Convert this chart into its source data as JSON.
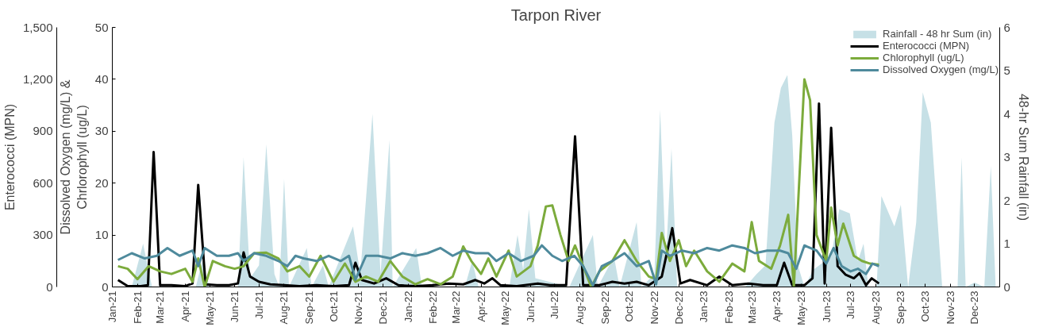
{
  "chart_data": {
    "type": "line",
    "title": "Tarpon River",
    "ylabel": "Dissolved Oxygen (mg/L) &\nChrlorophyll (ug/L)",
    "y2label": "48-hr Sum Rainfall (in)",
    "y3label": "Enterococci (MPN)",
    "xlim": [
      "2021-01-01",
      "2024-01-01"
    ],
    "xticks": [
      {
        "value": "2021-01",
        "label": "Jan-21"
      },
      {
        "value": "2021-02",
        "label": "Feb-21"
      },
      {
        "value": "2021-03",
        "label": "Mar-21"
      },
      {
        "value": "2021-04",
        "label": "Apr-21"
      },
      {
        "value": "2021-05",
        "label": "May-21"
      },
      {
        "value": "2021-06",
        "label": "Jun-21"
      },
      {
        "value": "2021-07",
        "label": "Jul-21"
      },
      {
        "value": "2021-08",
        "label": "Aug-21"
      },
      {
        "value": "2021-09",
        "label": "Sep-21"
      },
      {
        "value": "2021-10",
        "label": "Oct-21"
      },
      {
        "value": "2021-11",
        "label": "Nov-21"
      },
      {
        "value": "2021-12",
        "label": "Dec-21"
      },
      {
        "value": "2022-01",
        "label": "Jan-22"
      },
      {
        "value": "2022-02",
        "label": "Feb-22"
      },
      {
        "value": "2022-03",
        "label": "Mar-22"
      },
      {
        "value": "2022-04",
        "label": "Apr-22"
      },
      {
        "value": "2022-05",
        "label": "May-22"
      },
      {
        "value": "2022-06",
        "label": "Jun-22"
      },
      {
        "value": "2022-07",
        "label": "Jul-22"
      },
      {
        "value": "2022-08",
        "label": "Aug-22"
      },
      {
        "value": "2022-09",
        "label": "Sep-22"
      },
      {
        "value": "2022-10",
        "label": "Oct-22"
      },
      {
        "value": "2022-11",
        "label": "Nov-22"
      },
      {
        "value": "2022-12",
        "label": "Dec-22"
      },
      {
        "value": "2023-01",
        "label": "Jan-23"
      },
      {
        "value": "2023-02",
        "label": "Feb-23"
      },
      {
        "value": "2023-03",
        "label": "Mar-23"
      },
      {
        "value": "2023-04",
        "label": "Apr-23"
      },
      {
        "value": "2023-05",
        "label": "May-23"
      },
      {
        "value": "2023-06",
        "label": "Jun-23"
      },
      {
        "value": "2023-07",
        "label": "Jul-23"
      },
      {
        "value": "2023-08",
        "label": "Aug-23"
      },
      {
        "value": "2023-09",
        "label": "Sep-23"
      },
      {
        "value": "2023-10",
        "label": "Oct-23"
      },
      {
        "value": "2023-11",
        "label": "Nov-23"
      },
      {
        "value": "2023-12",
        "label": "Dec-23"
      }
    ],
    "ylim": [
      0,
      50
    ],
    "yticks": [
      0,
      10,
      20,
      30,
      40,
      50
    ],
    "y2lim": [
      0,
      6
    ],
    "y2ticks": [
      0,
      1,
      2,
      3,
      4,
      5,
      6
    ],
    "y3lim": [
      0,
      1500
    ],
    "y3ticks": [
      0,
      300,
      600,
      900,
      {
        "value": 1200,
        "label": "1,200"
      },
      {
        "value": 1500,
        "label": "1,500"
      }
    ],
    "legend": "top right",
    "series": [
      {
        "name": "Rainfall - 48 hr Sum (in)",
        "type": "area",
        "axis": "y2",
        "color": "#c6e0e6",
        "x": [
          "2021-01-05",
          "2021-01-25",
          "2021-02-08",
          "2021-02-19",
          "2021-04-14",
          "2021-04-22",
          "2021-05-01",
          "2021-06-05",
          "2021-06-12",
          "2021-06-20",
          "2021-07-01",
          "2021-07-10",
          "2021-07-20",
          "2021-07-26",
          "2021-08-01",
          "2021-08-07",
          "2021-08-29",
          "2021-09-04",
          "2021-09-18",
          "2021-09-25",
          "2021-10-25",
          "2021-11-03",
          "2021-11-18",
          "2021-11-28",
          "2021-12-09",
          "2021-12-13",
          "2022-01-11",
          "2022-01-18",
          "2022-03-12",
          "2022-03-21",
          "2022-03-29",
          "2022-05-06",
          "2022-05-16",
          "2022-05-23",
          "2022-05-30",
          "2022-06-07",
          "2022-07-19",
          "2022-08-17",
          "2022-08-23",
          "2022-09-12",
          "2022-09-19",
          "2022-10-10",
          "2022-10-16",
          "2022-11-01",
          "2022-11-08",
          "2022-11-15",
          "2022-11-22",
          "2022-11-29",
          "2023-02-21",
          "2023-03-07",
          "2023-03-18",
          "2023-03-29",
          "2023-04-06",
          "2023-04-14",
          "2023-04-20",
          "2023-04-27",
          "2023-05-05",
          "2023-05-16",
          "2023-06-07",
          "2023-06-17",
          "2023-06-30",
          "2023-07-10",
          "2023-07-17",
          "2023-07-23",
          "2023-08-02",
          "2023-08-08",
          "2023-08-24",
          "2023-09-01",
          "2023-09-10",
          "2023-09-20",
          "2023-09-28",
          "2023-10-08",
          "2023-10-22",
          "2023-11-10",
          "2023-11-15",
          "2023-11-20",
          "2023-12-01",
          "2023-12-13",
          "2023-12-21",
          "2023-12-27"
        ],
        "values": [
          0,
          0,
          1.0,
          0,
          0,
          0.6,
          0,
          0,
          3.0,
          0.2,
          0.5,
          3.3,
          0.3,
          0,
          2.5,
          0,
          0.9,
          0,
          0.5,
          0,
          1.4,
          0.3,
          4.0,
          0.3,
          3.4,
          0,
          0.9,
          0,
          0,
          0.6,
          0,
          0,
          1.2,
          0.4,
          1.8,
          0.2,
          0,
          1.2,
          0,
          0.7,
          0,
          1.5,
          0,
          0.3,
          4.1,
          0.6,
          3.2,
          0,
          0,
          0.3,
          0.5,
          3.8,
          4.6,
          4.9,
          3.5,
          0.5,
          0,
          0.4,
          0.7,
          1.8,
          1.7,
          0.6,
          1.0,
          0,
          0,
          2.1,
          1.4,
          1.9,
          0,
          1.5,
          4.5,
          3.8,
          0,
          0,
          3.0,
          0,
          0.1,
          0,
          2.8,
          0
        ]
      },
      {
        "name": "Enterococci (MPN)",
        "axis": "y3",
        "color": "#000000",
        "x": [
          "2021-01-08",
          "2021-01-20",
          "2021-02-05",
          "2021-02-14",
          "2021-02-21",
          "2021-03-01",
          "2021-03-15",
          "2021-04-01",
          "2021-04-10",
          "2021-04-17",
          "2021-04-26",
          "2021-05-10",
          "2021-05-25",
          "2021-06-05",
          "2021-06-12",
          "2021-06-20",
          "2021-07-01",
          "2021-07-15",
          "2021-08-01",
          "2021-08-20",
          "2021-09-10",
          "2021-10-01",
          "2021-10-20",
          "2021-10-28",
          "2021-11-05",
          "2021-11-20",
          "2021-12-05",
          "2021-12-20",
          "2022-01-10",
          "2022-02-01",
          "2022-02-20",
          "2022-03-10",
          "2022-03-25",
          "2022-04-05",
          "2022-04-15",
          "2022-04-25",
          "2022-05-15",
          "2022-06-10",
          "2022-06-25",
          "2022-07-15",
          "2022-07-26",
          "2022-08-05",
          "2022-08-25",
          "2022-09-10",
          "2022-09-25",
          "2022-10-10",
          "2022-10-25",
          "2022-11-10",
          "2022-11-23",
          "2022-12-03",
          "2022-12-15",
          "2023-01-05",
          "2023-01-20",
          "2023-02-05",
          "2023-02-25",
          "2023-03-15",
          "2023-04-01",
          "2023-04-10",
          "2023-04-20",
          "2023-05-05",
          "2023-05-15",
          "2023-05-23",
          "2023-05-30",
          "2023-06-07",
          "2023-06-15",
          "2023-06-25",
          "2023-07-05",
          "2023-07-12",
          "2023-07-20",
          "2023-07-27",
          "2023-08-05"
        ],
        "values": [
          40,
          5,
          5,
          10,
          780,
          10,
          10,
          5,
          20,
          590,
          15,
          10,
          10,
          20,
          200,
          60,
          30,
          15,
          10,
          5,
          10,
          5,
          10,
          140,
          40,
          20,
          50,
          10,
          5,
          10,
          20,
          15,
          40,
          20,
          50,
          10,
          5,
          20,
          10,
          10,
          870,
          10,
          10,
          30,
          20,
          30,
          10,
          60,
          340,
          20,
          40,
          10,
          60,
          10,
          20,
          10,
          10,
          140,
          10,
          10,
          50,
          1060,
          20,
          920,
          120,
          70,
          50,
          80,
          10,
          50,
          20
        ]
      },
      {
        "name": "Chlorophyll (ug/L)",
        "axis": "y",
        "color": "#7cab3c",
        "x": [
          "2021-01-08",
          "2021-01-20",
          "2021-02-01",
          "2021-02-15",
          "2021-03-01",
          "2021-03-15",
          "2021-04-01",
          "2021-04-10",
          "2021-04-17",
          "2021-04-25",
          "2021-05-05",
          "2021-05-20",
          "2021-06-01",
          "2021-06-12",
          "2021-06-25",
          "2021-07-10",
          "2021-07-25",
          "2021-08-05",
          "2021-08-20",
          "2021-09-01",
          "2021-09-15",
          "2021-10-01",
          "2021-10-15",
          "2021-10-28",
          "2021-11-10",
          "2021-11-25",
          "2021-12-10",
          "2021-12-25",
          "2022-01-10",
          "2022-01-25",
          "2022-02-10",
          "2022-02-25",
          "2022-03-10",
          "2022-03-20",
          "2022-04-01",
          "2022-04-10",
          "2022-04-20",
          "2022-05-05",
          "2022-05-15",
          "2022-06-01",
          "2022-06-10",
          "2022-06-20",
          "2022-06-28",
          "2022-07-08",
          "2022-07-18",
          "2022-07-26",
          "2022-08-05",
          "2022-08-15",
          "2022-08-25",
          "2022-09-10",
          "2022-09-25",
          "2022-10-10",
          "2022-10-25",
          "2022-11-03",
          "2022-11-10",
          "2022-11-20",
          "2022-12-01",
          "2022-12-10",
          "2022-12-20",
          "2023-01-05",
          "2023-01-20",
          "2023-02-05",
          "2023-02-20",
          "2023-03-01",
          "2023-03-10",
          "2023-03-25",
          "2023-04-05",
          "2023-04-15",
          "2023-04-22",
          "2023-05-05",
          "2023-05-12",
          "2023-05-20",
          "2023-06-01",
          "2023-06-07",
          "2023-06-15",
          "2023-06-22",
          "2023-07-05",
          "2023-07-15",
          "2023-07-25",
          "2023-08-05"
        ],
        "values": [
          4.0,
          3.5,
          1.5,
          4.0,
          3.0,
          2.5,
          3.5,
          1.0,
          5.5,
          0,
          5.0,
          4.0,
          3.5,
          4.0,
          6.5,
          6.6,
          5.5,
          3.0,
          4.0,
          2.0,
          6.0,
          1.0,
          4.5,
          1.0,
          2.0,
          1.0,
          5.0,
          2.0,
          0.5,
          1.5,
          0.5,
          2.0,
          7.8,
          5.0,
          2.5,
          5.5,
          2.0,
          7.0,
          2.0,
          4.0,
          8.0,
          15.5,
          15.7,
          10.0,
          5.0,
          8.0,
          4.0,
          0,
          3.0,
          5.0,
          9.0,
          5.0,
          2.0,
          1.5,
          10.4,
          5.0,
          9.0,
          4.0,
          7.0,
          3.0,
          1.0,
          4.5,
          3.0,
          12.5,
          5.0,
          3.5,
          8.0,
          13.9,
          0,
          40,
          36,
          10,
          5.0,
          15.3,
          8.0,
          12.2,
          6.0,
          5.0,
          4.5,
          4.3
        ]
      },
      {
        "name": "Dissolved Oxygen (mg/L)",
        "axis": "y",
        "color": "#4e8a9c",
        "x": [
          "2021-01-08",
          "2021-01-25",
          "2021-02-10",
          "2021-02-25",
          "2021-03-10",
          "2021-03-25",
          "2021-04-10",
          "2021-04-17",
          "2021-04-25",
          "2021-05-10",
          "2021-05-25",
          "2021-06-05",
          "2021-06-12",
          "2021-06-25",
          "2021-07-10",
          "2021-07-25",
          "2021-08-05",
          "2021-08-15",
          "2021-08-25",
          "2021-09-10",
          "2021-09-25",
          "2021-10-10",
          "2021-10-20",
          "2021-10-28",
          "2021-11-10",
          "2021-11-25",
          "2021-12-10",
          "2021-12-25",
          "2022-01-10",
          "2022-01-25",
          "2022-02-10",
          "2022-02-25",
          "2022-03-10",
          "2022-03-25",
          "2022-04-10",
          "2022-04-20",
          "2022-05-05",
          "2022-05-20",
          "2022-06-05",
          "2022-06-15",
          "2022-06-28",
          "2022-07-10",
          "2022-07-25",
          "2022-08-05",
          "2022-08-17",
          "2022-08-28",
          "2022-09-10",
          "2022-09-25",
          "2022-10-10",
          "2022-10-25",
          "2022-11-03",
          "2022-11-10",
          "2022-11-20",
          "2022-12-05",
          "2022-12-20",
          "2023-01-05",
          "2023-01-20",
          "2023-02-05",
          "2023-02-20",
          "2023-03-05",
          "2023-03-20",
          "2023-04-05",
          "2023-04-15",
          "2023-04-25",
          "2023-05-05",
          "2023-05-20",
          "2023-06-01",
          "2023-06-10",
          "2023-06-20",
          "2023-07-01",
          "2023-07-10",
          "2023-07-20",
          "2023-07-28",
          "2023-08-05"
        ],
        "values": [
          5.2,
          6.5,
          5.5,
          6.0,
          7.5,
          6.0,
          7.0,
          4.0,
          7.5,
          6.0,
          6.0,
          6.5,
          5.0,
          6.5,
          6.0,
          5.0,
          4.0,
          6.0,
          5.5,
          5.0,
          6.0,
          5.0,
          6.0,
          1.4,
          6.0,
          6.0,
          5.5,
          6.5,
          6.0,
          6.5,
          7.5,
          6.0,
          7.0,
          6.5,
          6.5,
          5.0,
          6.5,
          5.0,
          6.0,
          8.0,
          6.0,
          5.0,
          6.0,
          4.0,
          0.3,
          4.0,
          5.0,
          6.5,
          4.0,
          5.0,
          0.5,
          7.0,
          6.0,
          7.0,
          6.5,
          7.5,
          7.0,
          8.0,
          7.5,
          6.5,
          7.0,
          7.0,
          6.5,
          3.5,
          8.0,
          7.0,
          4.5,
          7.5,
          4.0,
          3.0,
          3.5,
          2.5,
          4.5,
          4.0
        ]
      }
    ]
  }
}
